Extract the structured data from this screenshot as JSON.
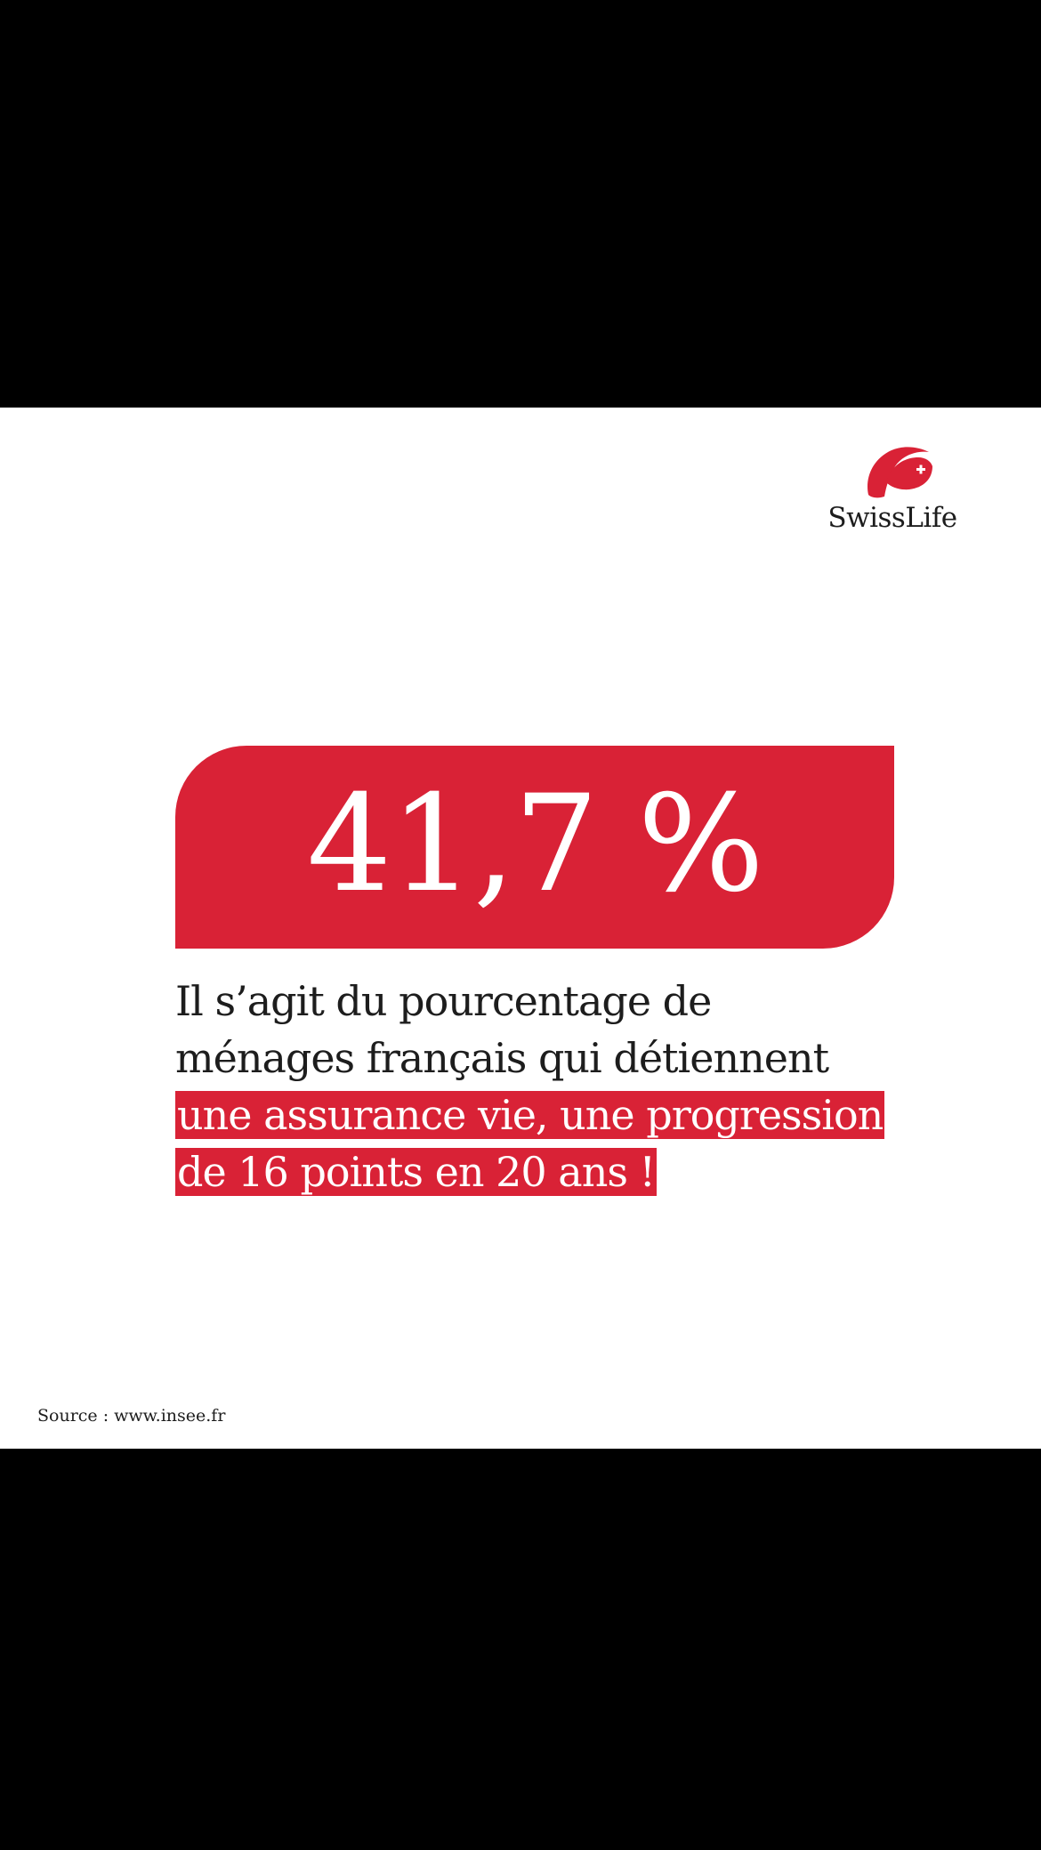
{
  "brand": {
    "name": "SwissLife",
    "logo_icon": "swisslife-flag-icon",
    "accent_color": "#d92236"
  },
  "stat": {
    "value": "41,7 %"
  },
  "description": {
    "lines": [
      "Il s’agit du pourcentage de",
      "ménages français qui détiennent"
    ],
    "highlight_lines": [
      "une assurance vie, une progression",
      "de 16 points en 20 ans !"
    ]
  },
  "source": "Source : www.insee.fr"
}
